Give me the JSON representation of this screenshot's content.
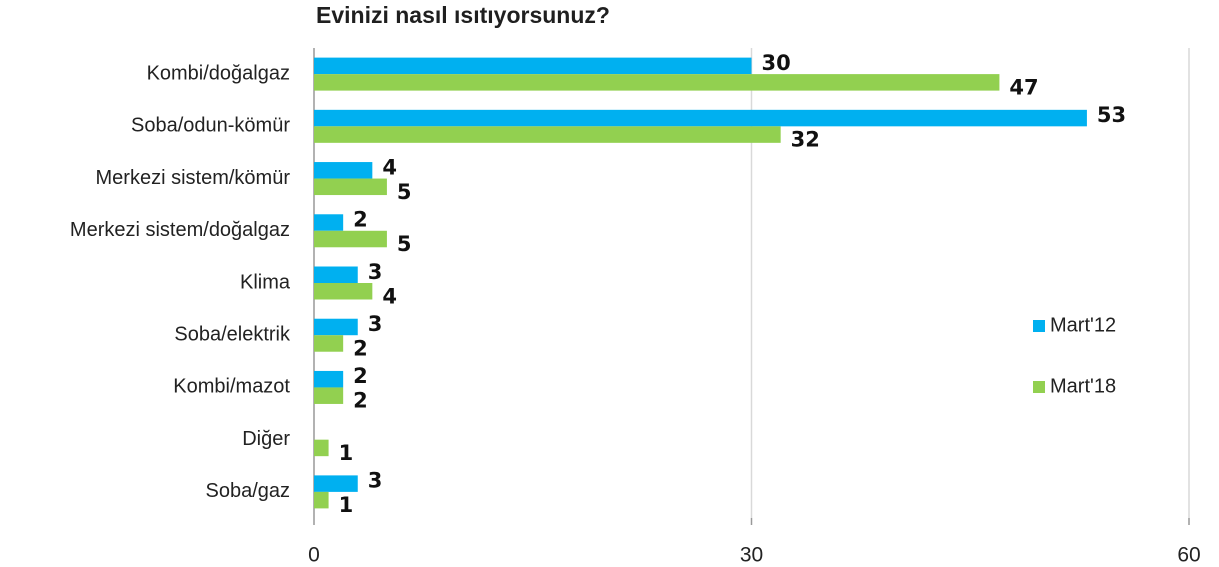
{
  "chart_data": {
    "type": "bar",
    "orientation": "horizontal",
    "title": "Evinizi nasıl ısıtıyorsunuz?",
    "categories": [
      "Kombi/doğalgaz",
      "Soba/odun-kömür",
      "Merkezi sistem/kömür",
      "Merkezi sistem/doğalgaz",
      "Klima",
      "Soba/elektrik",
      "Kombi/mazot",
      "Diğer",
      "Soba/gaz"
    ],
    "series": [
      {
        "name": "Mart'12",
        "color": "#00b0f0",
        "values": [
          30,
          53,
          4,
          2,
          3,
          3,
          2,
          null,
          3
        ]
      },
      {
        "name": "Mart'18",
        "color": "#92d050",
        "values": [
          47,
          32,
          5,
          5,
          4,
          2,
          2,
          1,
          1
        ]
      }
    ],
    "xlim": [
      0,
      60
    ],
    "xticks": [
      0,
      30,
      60
    ],
    "grid": true,
    "legend": "right"
  }
}
